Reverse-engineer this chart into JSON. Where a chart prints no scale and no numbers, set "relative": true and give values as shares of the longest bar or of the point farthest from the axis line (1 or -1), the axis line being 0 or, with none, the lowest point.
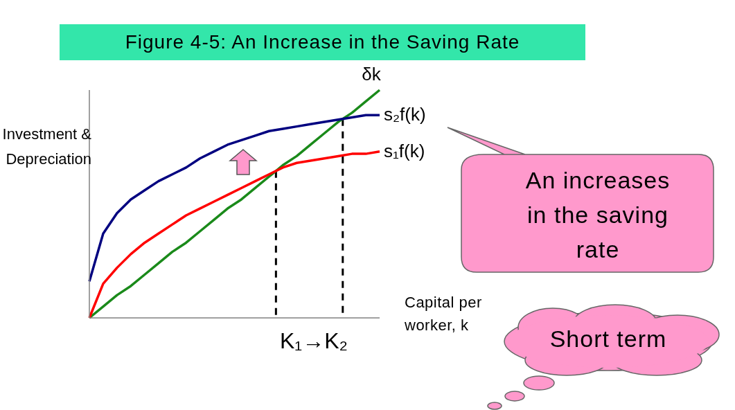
{
  "chart_data": {
    "type": "line",
    "title": "Figure 4-5: An Increase in the Saving Rate",
    "xlabel": "Capital per worker, k",
    "ylabel": "Investment & Depreciation",
    "relative": true,
    "categories": [
      null,
      null,
      null,
      null,
      null,
      null,
      null,
      null,
      null,
      null,
      null,
      null,
      null,
      null,
      null,
      null,
      null,
      null,
      null,
      null,
      null,
      null
    ],
    "grid": false,
    "legend": false,
    "marker": "none",
    "line_style": "solid",
    "series": [
      {
        "name": "δk",
        "color": "#1a8a1a",
        "values": [
          0,
          0.05,
          0.1,
          0.14,
          0.19,
          0.24,
          0.29,
          0.33,
          0.38,
          0.43,
          0.48,
          0.52,
          0.57,
          0.62,
          0.67,
          0.71,
          0.76,
          0.81,
          0.86,
          0.9,
          0.95,
          1
        ]
      },
      {
        "name": "s₂f(k)",
        "color": "#000080",
        "values": [
          0.16,
          0.37,
          0.46,
          0.52,
          0.56,
          0.6,
          0.63,
          0.66,
          0.7,
          0.73,
          0.76,
          0.78,
          0.8,
          0.82,
          0.83,
          0.84,
          0.85,
          0.86,
          0.87,
          0.88,
          0.89,
          0.89
        ]
      },
      {
        "name": "s₁f(k)",
        "color": "#ff0000",
        "values": [
          0,
          0.15,
          0.22,
          0.28,
          0.33,
          0.37,
          0.41,
          0.45,
          0.48,
          0.51,
          0.54,
          0.57,
          0.6,
          0.63,
          0.66,
          0.68,
          0.69,
          0.7,
          0.71,
          0.72,
          0.72,
          0.73
        ]
      }
    ],
    "annotations": [
      "K₁→K₂",
      "An increases in the saving rate",
      "Short term"
    ]
  }
}
